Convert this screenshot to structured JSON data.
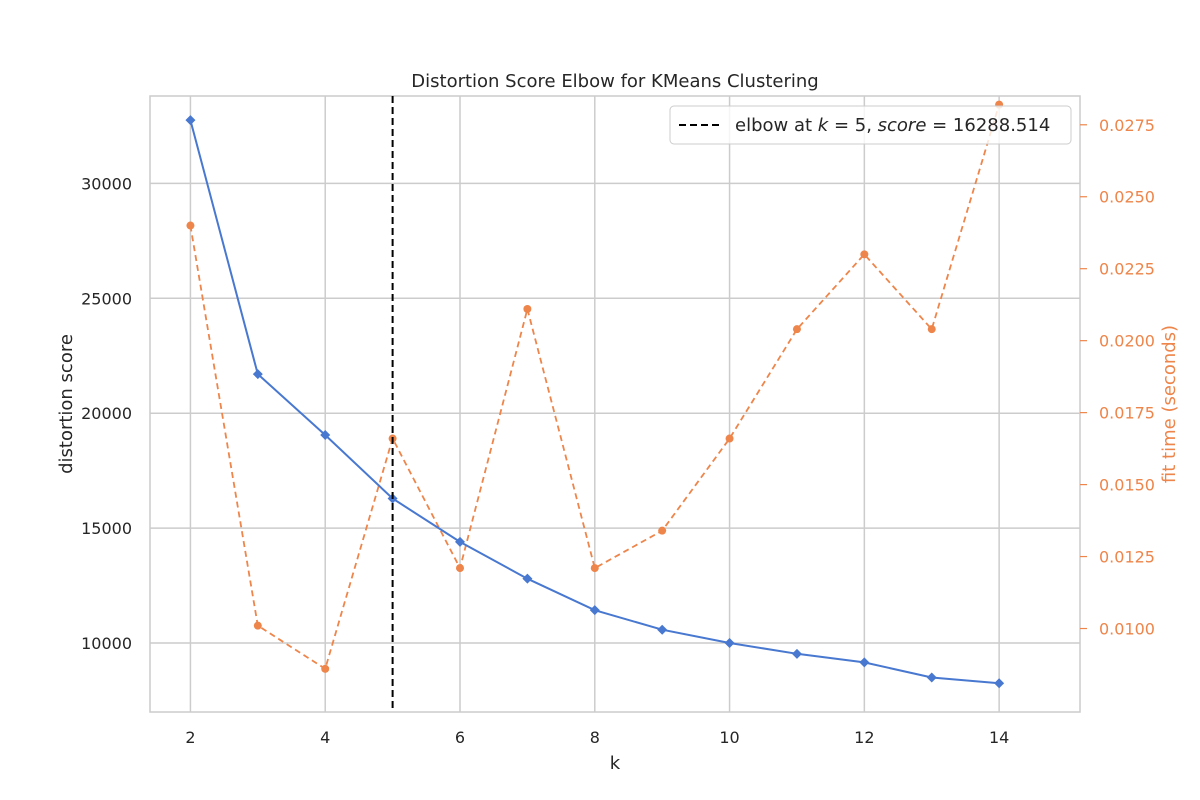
{
  "chart_data": {
    "type": "line",
    "title": "Distortion Score Elbow for KMeans Clustering",
    "xlabel": "k",
    "ylabel": "distortion score",
    "y2label": "fit time (seconds)",
    "xlim": [
      1.4,
      15.2
    ],
    "ylim": [
      7000,
      33800
    ],
    "y2lim": [
      0.0071,
      0.0285
    ],
    "xticks": [
      2,
      4,
      6,
      8,
      10,
      12,
      14
    ],
    "yticks": [
      10000,
      15000,
      20000,
      25000,
      30000
    ],
    "y2ticks": [
      0.01,
      0.0125,
      0.015,
      0.0175,
      0.02,
      0.0225,
      0.025,
      0.0275
    ],
    "ytick_labels": [
      "10000",
      "15000",
      "20000",
      "25000",
      "30000"
    ],
    "y2tick_labels": [
      "0.0100",
      "0.0125",
      "0.0150",
      "0.0175",
      "0.0200",
      "0.0225",
      "0.0250",
      "0.0275"
    ],
    "grid": true,
    "legend_position": "top-right",
    "series": [
      {
        "axis": "left",
        "color": "#4878d0",
        "style": "solid",
        "marker": "diamond",
        "x": [
          2,
          3,
          4,
          5,
          6,
          7,
          8,
          9,
          10,
          11,
          12,
          13,
          14
        ],
        "values": [
          32750,
          21700,
          19050,
          16288.514,
          14400,
          12800,
          11430,
          10580,
          10000,
          9530,
          9160,
          8500,
          8250
        ]
      },
      {
        "axis": "right",
        "color": "#ee854a",
        "style": "dashed",
        "marker": "circle",
        "x": [
          2,
          3,
          4,
          5,
          6,
          7,
          8,
          9,
          10,
          11,
          12,
          13,
          14
        ],
        "values": [
          0.024,
          0.0101,
          0.0086,
          0.0166,
          0.0121,
          0.0211,
          0.0121,
          0.0134,
          0.0166,
          0.0204,
          0.023,
          0.0204,
          0.0282
        ]
      }
    ],
    "elbow": {
      "k": 5,
      "score": "16288.514",
      "color": "#000000",
      "legend_prefix": "elbow at ",
      "legend_k_symbol": "k",
      "legend_eq": " = 5, ",
      "legend_score_symbol": "score",
      "legend_score_eq": " = 16288.514"
    }
  }
}
